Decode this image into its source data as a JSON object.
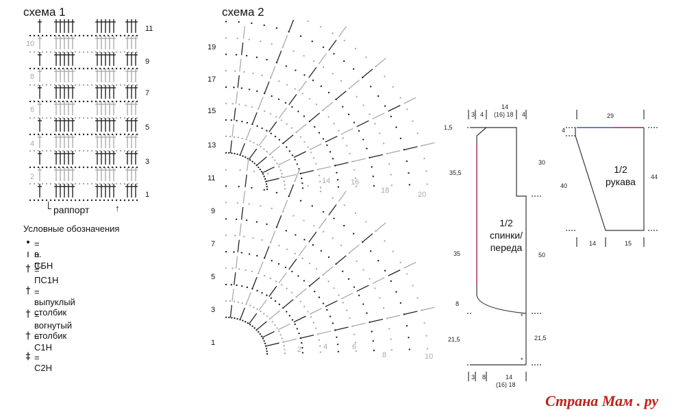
{
  "scheme1": {
    "title": "схема 1",
    "row_labels_right": [
      "11",
      "9",
      "7",
      "5",
      "3",
      "1"
    ],
    "row_labels_left": [
      "10",
      "8",
      "6",
      "4",
      "2"
    ],
    "repeat_label": "раппорт"
  },
  "scheme2": {
    "title": "схема 2",
    "row_labels": [
      "19",
      "17",
      "15",
      "13",
      "11",
      "9",
      "7",
      "5",
      "3",
      "1"
    ],
    "arc_labels_upper": [
      "14",
      "16",
      "18",
      "20"
    ],
    "arc_labels_lower": [
      "2",
      "4",
      "6",
      "8",
      "10"
    ]
  },
  "legend": {
    "title": "Условные обозначения",
    "items": [
      {
        "symbol": "•",
        "text": "= в. п."
      },
      {
        "symbol": "ı",
        "text": "= СБН"
      },
      {
        "symbol": "†",
        "text": "= ПС1Н"
      },
      {
        "symbol": "†",
        "text": "= выпуклый столбик"
      },
      {
        "symbol": "†",
        "text": "= вогнутый столбик"
      },
      {
        "symbol": "†",
        "text": "= С1Н"
      },
      {
        "symbol": "‡",
        "text": "= С2Н"
      }
    ]
  },
  "body_pattern": {
    "label_lines": [
      "1/2",
      "спинки/",
      "переда"
    ],
    "top_dims": [
      "3",
      "4",
      "14",
      "(16) 18",
      "4"
    ],
    "top_left": "1,5",
    "left_dims": [
      "35,5",
      "35",
      "8",
      "21,5"
    ],
    "right_dims": [
      "30",
      "50",
      "21,5"
    ],
    "bottom_dims": [
      "3",
      "8",
      "14",
      "(16) 18"
    ]
  },
  "sleeve_pattern": {
    "label_lines": [
      "1/2",
      "рукава"
    ],
    "top_dim": "29",
    "left_dims": [
      "4",
      "40"
    ],
    "right_dim": "44",
    "bottom_dims": [
      "14",
      "15"
    ]
  },
  "watermark": "Страна Мам . ру"
}
